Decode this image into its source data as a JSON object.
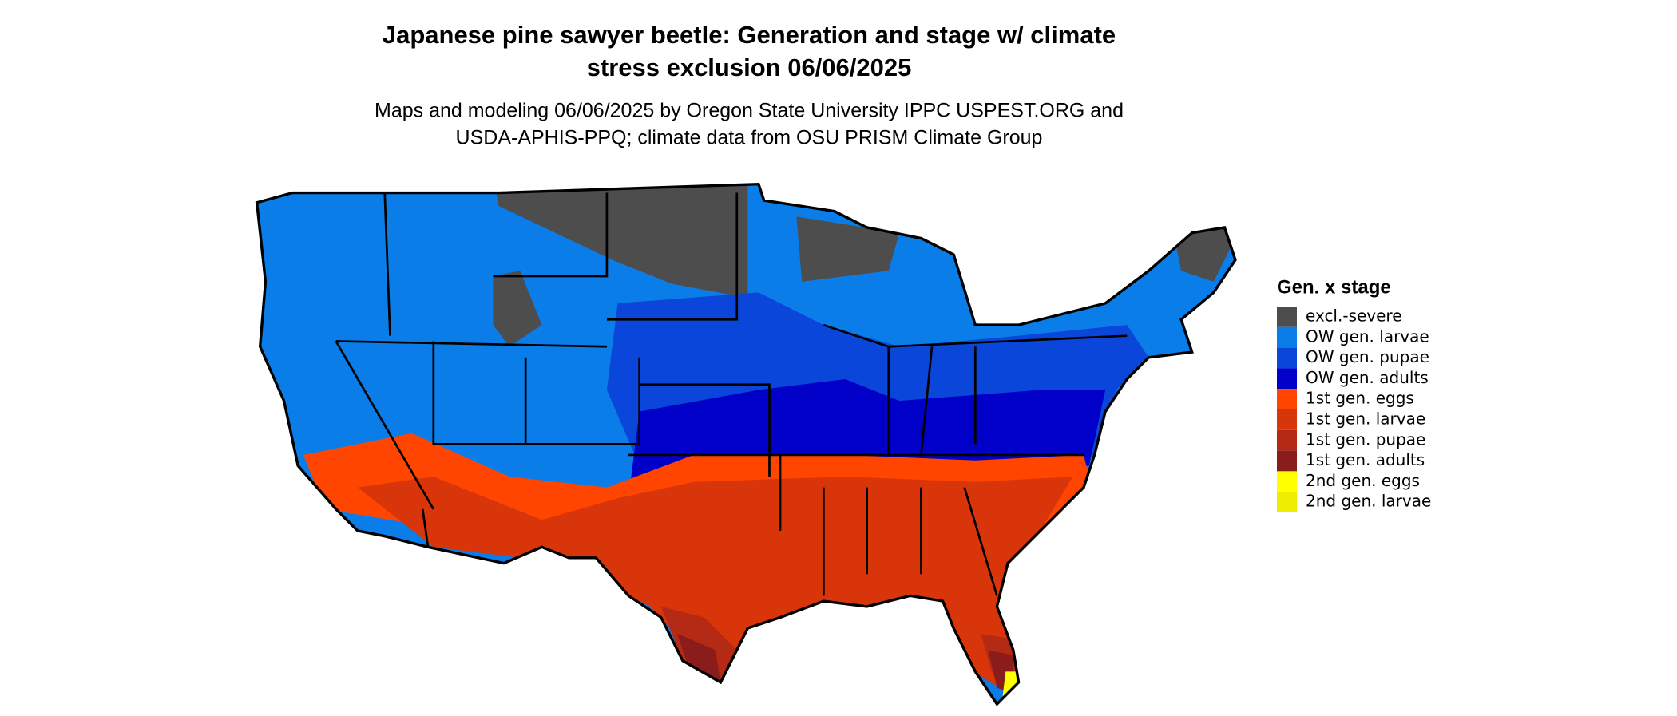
{
  "title": [
    "Japanese pine sawyer beetle: Generation and stage w/ climate",
    "stress exclusion 06/06/2025"
  ],
  "subtitle": [
    "Maps and modeling 06/06/2025 by Oregon State University IPPC USPEST.ORG and",
    "USDA-APHIS-PPQ; climate data from OSU PRISM Climate Group"
  ],
  "legend": {
    "title": "Gen. x stage",
    "items": [
      {
        "label": "excl.-severe",
        "color": "#4d4d4d"
      },
      {
        "label": "OW gen. larvae",
        "color": "#0a7de8"
      },
      {
        "label": "OW gen. pupae",
        "color": "#0a46d9"
      },
      {
        "label": "OW gen. adults",
        "color": "#0000c8"
      },
      {
        "label": "1st gen. eggs",
        "color": "#ff4500"
      },
      {
        "label": "1st gen. larvae",
        "color": "#d8350b"
      },
      {
        "label": "1st gen. pupae",
        "color": "#b52a14"
      },
      {
        "label": "1st gen. adults",
        "color": "#8b1c1c"
      },
      {
        "label": "2nd gen. eggs",
        "color": "#ffff00"
      },
      {
        "label": "2nd gen. larvae",
        "color": "#eeee00"
      }
    ]
  }
}
